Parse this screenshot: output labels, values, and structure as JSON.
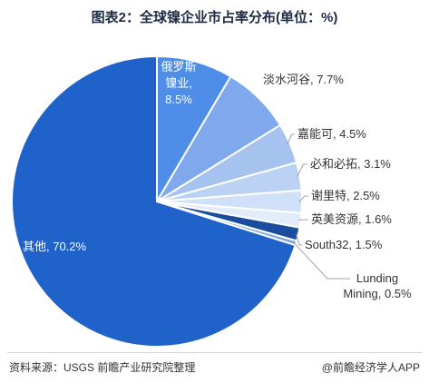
{
  "chart_data": {
    "type": "pie",
    "title": "图表2：全球镍企业市占率分布(单位：%)",
    "slices": [
      {
        "name": "俄罗斯镍业",
        "value": 8.5,
        "label_lines": [
          "俄罗斯",
          "镍业,",
          "8.5%"
        ],
        "color": "#4f8ee8"
      },
      {
        "name": "淡水河谷",
        "value": 7.7,
        "label_lines": [
          "淡水河谷, 7.7%"
        ],
        "color": "#7fa9ec"
      },
      {
        "name": "嘉能可",
        "value": 4.5,
        "label_lines": [
          "嘉能可, 4.5%"
        ],
        "color": "#a6c3f0"
      },
      {
        "name": "必和必拓",
        "value": 3.1,
        "label_lines": [
          "必和必拓, 3.1%"
        ],
        "color": "#bcd2f4"
      },
      {
        "name": "谢里特",
        "value": 2.5,
        "label_lines": [
          "谢里特, 2.5%"
        ],
        "color": "#d0e0f8"
      },
      {
        "name": "英美资源",
        "value": 1.6,
        "label_lines": [
          "英美资源, 1.6%"
        ],
        "color": "#e3ecfa"
      },
      {
        "name": "South32",
        "value": 1.5,
        "label_lines": [
          "South32, 1.5%"
        ],
        "color": "#1a4d9e"
      },
      {
        "name": "Lunding Mining",
        "value": 0.5,
        "label_lines": [
          "Lunding",
          "Mining, 0.5%"
        ],
        "color": "#7da6e6"
      },
      {
        "name": "其他",
        "value": 70.2,
        "label_lines": [
          "其他, 70.2%"
        ],
        "color": "#1f62c9"
      }
    ]
  },
  "footer": {
    "source": "资料来源：USGS 前瞻产业研究院整理",
    "brand": "@前瞻经济学人APP"
  }
}
